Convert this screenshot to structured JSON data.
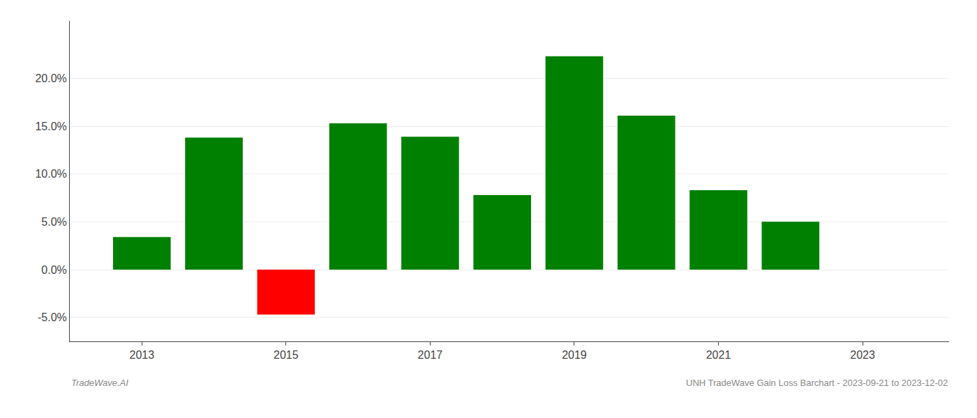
{
  "chart_data": {
    "type": "bar",
    "x": [
      2013,
      2014,
      2015,
      2016,
      2017,
      2018,
      2019,
      2020,
      2021,
      2022,
      2023
    ],
    "values": [
      3.4,
      13.8,
      -4.7,
      15.3,
      13.9,
      7.8,
      22.3,
      16.1,
      8.3,
      5.0,
      null
    ],
    "colors": [
      "#008000",
      "#008000",
      "#ff0000",
      "#008000",
      "#008000",
      "#008000",
      "#008000",
      "#008000",
      "#008000",
      "#008000",
      null
    ],
    "xlim": [
      2012.0,
      2024.2
    ],
    "xticks": [
      2013,
      2015,
      2017,
      2019,
      2021,
      2023
    ],
    "ylim": [
      -7.5,
      26
    ],
    "yticks": [
      {
        "value": -5.0,
        "label": "-5.0%"
      },
      {
        "value": 0.0,
        "label": "0.0%"
      },
      {
        "value": 5.0,
        "label": "5.0%"
      },
      {
        "value": 10.0,
        "label": "10.0%"
      },
      {
        "value": 15.0,
        "label": "15.0%"
      },
      {
        "value": 20.0,
        "label": "20.0%"
      }
    ],
    "grid": true,
    "annotations": [
      "TradeWave.AI",
      "UNH TradeWave Gain Loss Barchart - 2023-09-21 to 2023-12-02"
    ]
  }
}
